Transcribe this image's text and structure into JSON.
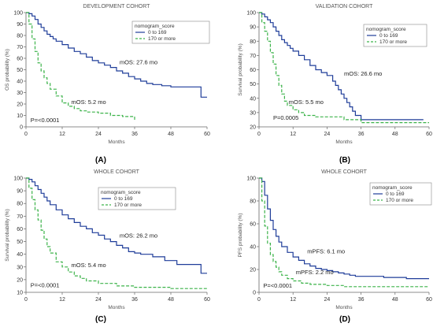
{
  "chart_data": [
    {
      "type": "line",
      "subtype": "kaplan-meier",
      "panel_label": "(A)",
      "title": "DEVELOPMENT COHORT",
      "xlabel": "Months",
      "ylabel": "OS probability (%)",
      "xlim": [
        0,
        60
      ],
      "ylim": [
        0,
        100
      ],
      "xticks": [
        0,
        12,
        24,
        36,
        48,
        60
      ],
      "yticks": [
        0,
        10,
        20,
        30,
        40,
        50,
        60,
        70,
        80,
        90,
        100
      ],
      "legend": {
        "title": "nomogram_score",
        "placement": "top-right"
      },
      "annotations": [
        {
          "text": "mOS: 27.6 mo",
          "x": 31,
          "y": 55
        },
        {
          "text": "mOS: 5.2 mo",
          "x": 15,
          "y": 20
        },
        {
          "text": "P=<0.0001",
          "x": 1.5,
          "y": 4
        }
      ],
      "series": [
        {
          "name": "0 to 169",
          "color": "#1f3d99",
          "dash": "solid",
          "x": [
            0,
            1,
            2,
            3,
            4,
            5,
            6,
            7,
            8,
            9,
            10,
            12,
            14,
            16,
            18,
            20,
            22,
            24,
            26,
            28,
            30,
            32,
            34,
            36,
            38,
            40,
            42,
            45,
            48,
            52,
            56,
            58,
            60
          ],
          "y": [
            100,
            99,
            97,
            94,
            90,
            87,
            84,
            81,
            79,
            77,
            75,
            72,
            69,
            66,
            64,
            61,
            58,
            56,
            54,
            52,
            49,
            47,
            44,
            42,
            40,
            38,
            37,
            36,
            35,
            35,
            35,
            26,
            26
          ]
        },
        {
          "name": "170 or more",
          "color": "#3cb34a",
          "dash": "dashed",
          "x": [
            0,
            1,
            2,
            3,
            4,
            5,
            6,
            7,
            8,
            10,
            12,
            14,
            16,
            18,
            20,
            24,
            28,
            32,
            36
          ],
          "y": [
            100,
            90,
            77,
            66,
            56,
            49,
            43,
            38,
            33,
            27,
            21,
            18,
            16,
            14,
            13,
            12,
            10,
            9,
            5
          ]
        }
      ]
    },
    {
      "type": "line",
      "subtype": "kaplan-meier",
      "panel_label": "(B)",
      "title": "VALIDATION COHORT",
      "xlabel": "Months",
      "ylabel": "Survival probability (%)",
      "xlim": [
        0,
        60
      ],
      "ylim": [
        20,
        100
      ],
      "xticks": [
        0,
        12,
        24,
        36,
        48,
        60
      ],
      "yticks": [
        20,
        30,
        40,
        50,
        60,
        70,
        80,
        90,
        100
      ],
      "legend": {
        "title": "nomogram_score",
        "placement": "top-right"
      },
      "annotations": [
        {
          "text": "mOS: 26.6 mo",
          "x": 30,
          "y": 56
        },
        {
          "text": "mOS: 5.5 mo",
          "x": 10.5,
          "y": 36
        },
        {
          "text": "P=0.0005",
          "x": 5,
          "y": 25
        }
      ],
      "series": [
        {
          "name": "0 to 169",
          "color": "#1f3d99",
          "dash": "solid",
          "x": [
            0,
            1,
            2,
            3,
            4,
            5,
            6,
            7,
            8,
            9,
            10,
            11,
            12,
            14,
            16,
            18,
            20,
            22,
            24,
            26,
            27,
            28,
            29,
            30,
            31,
            32,
            33,
            34,
            36,
            40,
            48,
            58
          ],
          "y": [
            100,
            99,
            97,
            95,
            93,
            90,
            87,
            84,
            81,
            79,
            77,
            75,
            73,
            70,
            67,
            63,
            60,
            58,
            56,
            52,
            49,
            46,
            43,
            40,
            37,
            34,
            31,
            28,
            25,
            25,
            25,
            25
          ]
        },
        {
          "name": "170 or more",
          "color": "#3cb34a",
          "dash": "dashed",
          "x": [
            0,
            1,
            2,
            3,
            4,
            5,
            6,
            7,
            8,
            9,
            10,
            12,
            14,
            16,
            20,
            24,
            28,
            30,
            36,
            48,
            60
          ],
          "y": [
            100,
            93,
            87,
            80,
            72,
            64,
            56,
            49,
            43,
            38,
            35,
            32,
            30,
            28,
            27,
            27,
            27,
            25,
            23,
            23,
            23
          ]
        }
      ]
    },
    {
      "type": "line",
      "subtype": "kaplan-meier",
      "panel_label": "(C)",
      "title": "WHOLE COHORT",
      "xlabel": "Months",
      "ylabel": "Survival probability (%)",
      "xlim": [
        0,
        60
      ],
      "ylim": [
        10,
        100
      ],
      "xticks": [
        0,
        12,
        24,
        36,
        48,
        60
      ],
      "yticks": [
        10,
        20,
        30,
        40,
        50,
        60,
        70,
        80,
        90,
        100
      ],
      "legend": {
        "title": "nomogram_score",
        "placement": "top-right"
      },
      "annotations": [
        {
          "text": "mOS: 26.2 mo",
          "x": 31,
          "y": 53
        },
        {
          "text": "mOS: 5.4 mo",
          "x": 15,
          "y": 30
        },
        {
          "text": "P=<0.0001",
          "x": 1.5,
          "y": 14
        }
      ],
      "series": [
        {
          "name": "0 to 169",
          "color": "#1f3d99",
          "dash": "solid",
          "x": [
            0,
            1,
            2,
            3,
            4,
            5,
            6,
            7,
            8,
            10,
            12,
            14,
            16,
            18,
            20,
            22,
            24,
            26,
            28,
            30,
            32,
            34,
            36,
            38,
            42,
            46,
            50,
            56,
            58,
            60
          ],
          "y": [
            100,
            99,
            97,
            94,
            91,
            88,
            85,
            82,
            79,
            75,
            71,
            68,
            65,
            62,
            60,
            57,
            55,
            52,
            50,
            47,
            45,
            42,
            41,
            40,
            38,
            35,
            32,
            32,
            25,
            25
          ]
        },
        {
          "name": "170 or more",
          "color": "#3cb34a",
          "dash": "dashed",
          "x": [
            0,
            1,
            2,
            3,
            4,
            5,
            6,
            7,
            8,
            10,
            12,
            14,
            16,
            18,
            20,
            24,
            30,
            36,
            48,
            60
          ],
          "y": [
            100,
            92,
            83,
            75,
            67,
            59,
            52,
            46,
            41,
            34,
            30,
            26,
            23,
            21,
            19,
            17,
            15,
            14,
            13,
            13
          ]
        }
      ]
    },
    {
      "type": "line",
      "subtype": "kaplan-meier",
      "panel_label": "(D)",
      "title": "WHOLE COHORT",
      "xlabel": "Months",
      "ylabel": "PFS probability (%)",
      "xlim": [
        0,
        60
      ],
      "ylim": [
        0,
        100
      ],
      "xticks": [
        0,
        12,
        24,
        36,
        48,
        60
      ],
      "yticks": [
        0,
        20,
        40,
        60,
        80,
        100
      ],
      "legend": {
        "title": "nomogram_score",
        "placement": "top-right"
      },
      "annotations": [
        {
          "text": "mPFS: 6.1 mo",
          "x": 17,
          "y": 34
        },
        {
          "text": "mPFS: 2.2 mo",
          "x": 13,
          "y": 16
        },
        {
          "text": "P=<0.0001",
          "x": 1.5,
          "y": 4
        }
      ],
      "series": [
        {
          "name": "0 to 169",
          "color": "#1f3d99",
          "dash": "solid",
          "x": [
            0,
            1,
            2,
            3,
            4,
            5,
            6,
            7,
            8,
            10,
            12,
            14,
            16,
            18,
            20,
            22,
            24,
            26,
            28,
            30,
            32,
            34,
            36,
            40,
            44,
            48,
            52,
            60
          ],
          "y": [
            100,
            97,
            85,
            73,
            63,
            55,
            49,
            44,
            40,
            35,
            31,
            28,
            25,
            23,
            21,
            20,
            19,
            18,
            17,
            16,
            15,
            14,
            14,
            14,
            13,
            13,
            12,
            12
          ]
        },
        {
          "name": "170 or more",
          "color": "#3cb34a",
          "dash": "dashed",
          "x": [
            0,
            1,
            2,
            3,
            4,
            5,
            6,
            7,
            8,
            10,
            12,
            15,
            18,
            24,
            30,
            36,
            48,
            60
          ],
          "y": [
            100,
            80,
            58,
            43,
            33,
            27,
            22,
            18,
            15,
            12,
            10,
            8,
            7,
            6,
            5,
            5,
            5,
            5
          ]
        }
      ]
    }
  ]
}
